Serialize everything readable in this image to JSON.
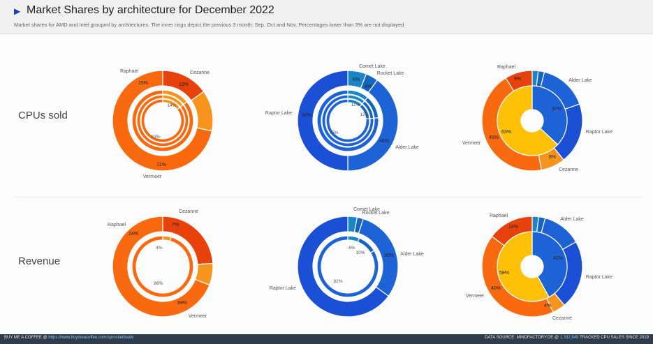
{
  "header": {
    "title": "Market Shares by architecture for December 2022",
    "subtitle": "Market shares for AMD and Intel grouped by architectures. The inner rings depict the previous 3 month: Sep, Oct and Nov. Percentages lower than 3% are not displayed"
  },
  "rows": [
    {
      "label": "CPUs sold"
    },
    {
      "label": "Revenue"
    }
  ],
  "footer": {
    "left_prefix": "BUY ME A COFFEE @",
    "left_link": "https://www.buymeacoffee.com/sprocketblade",
    "right_prefix": "DATA SOURCE: MINDFACTORY.DE @",
    "right_count": "1,332,945",
    "right_suffix": "TRACKED CPU SALES SINCE 2019"
  },
  "colors": {
    "Raphael": "#e8420c",
    "Cezanne": "#f7941d",
    "Vermeer": "#f96a10",
    "Comet Lake": "#1a86c8",
    "Rocket Lake": "#1565c0",
    "Alder Lake": "#1e63d6",
    "Raptor Lake": "#1a4fd6",
    "Cezanne-combined": "#ffc107",
    "Alder Lake-combined": "#26c6a0"
  },
  "chart_data": [
    {
      "type": "donut",
      "row": "CPUs sold",
      "vendor": "AMD",
      "series": [
        {
          "name": "Raphael",
          "values": [
            15,
            0,
            0,
            0
          ]
        },
        {
          "name": "Cezanne",
          "values": [
            13,
            14,
            14,
            14
          ]
        },
        {
          "name": "Vermeer",
          "values": [
            71,
            83,
            83,
            83
          ]
        }
      ],
      "labels_printed": {
        "Raphael": "15%",
        "Cezanne": "13%",
        "Vermeer": "71%",
        "inner_Cezanne": "14%",
        "inner_Vermeer": "83%"
      }
    },
    {
      "type": "donut",
      "row": "CPUs sold",
      "vendor": "Intel",
      "series": [
        {
          "name": "Comet Lake",
          "values": [
            6,
            11,
            11,
            11
          ]
        },
        {
          "name": "Rocket Lake",
          "values": [
            4,
            12,
            12,
            12
          ]
        },
        {
          "name": "Alder Lake",
          "values": [
            40,
            75,
            75,
            75
          ]
        },
        {
          "name": "Raptor Lake",
          "values": [
            50,
            0,
            0,
            0
          ]
        }
      ],
      "labels_printed": {
        "Comet Lake": "6%",
        "Rocket Lake": "4%",
        "Alder Lake": "40%",
        "Raptor Lake": "50%",
        "inner_Comet": "11%",
        "inner_Rocket": "12%",
        "inner_Alder": "75%"
      }
    },
    {
      "type": "donut",
      "row": "CPUs sold",
      "vendor": "Combined",
      "series": [
        {
          "name": "Comet Lake",
          "values": [
            2,
            0
          ]
        },
        {
          "name": "Rocket Lake",
          "values": [
            2,
            0
          ]
        },
        {
          "name": "Alder Lake",
          "values": [
            16,
            37
          ]
        },
        {
          "name": "Raptor Lake",
          "values": [
            20,
            0
          ]
        },
        {
          "name": "Cezanne",
          "values": [
            8,
            0
          ]
        },
        {
          "name": "Vermeer",
          "values": [
            45,
            0
          ]
        },
        {
          "name": "Raphael",
          "values": [
            9,
            0
          ]
        },
        {
          "name": "Cezanne-combined",
          "values": [
            0,
            63
          ]
        }
      ],
      "labels_printed": {
        "Raphael": "9%",
        "Vermeer": "45%",
        "Cezanne": "8%",
        "Alder Lake": "37%",
        "Vermeer-combined": "63%"
      }
    },
    {
      "type": "donut",
      "row": "Revenue",
      "vendor": "AMD",
      "series": [
        {
          "name": "Raphael",
          "values": [
            24,
            0
          ]
        },
        {
          "name": "Cezanne",
          "values": [
            7,
            4
          ]
        },
        {
          "name": "Vermeer",
          "values": [
            69,
            86
          ]
        }
      ],
      "labels_printed": {
        "Raphael": "24%",
        "Cezanne": "7%",
        "Vermeer": "69%",
        "inner_Cezanne": "4%",
        "inner_Vermeer": "86%"
      }
    },
    {
      "type": "donut",
      "row": "Revenue",
      "vendor": "Intel",
      "series": [
        {
          "name": "Comet Lake",
          "values": [
            3,
            6
          ]
        },
        {
          "name": "Rocket Lake",
          "values": [
            2,
            10
          ]
        },
        {
          "name": "Alder Lake",
          "values": [
            30,
            82
          ]
        },
        {
          "name": "Raptor Lake",
          "values": [
            65,
            0
          ]
        }
      ],
      "labels_printed": {
        "Alder Lake": "30%",
        "inner_Comet": "6%",
        "inner_Rocket": "10%",
        "inner_Alder": "82%"
      }
    },
    {
      "type": "donut",
      "row": "Revenue",
      "vendor": "Combined",
      "series": [
        {
          "name": "Comet Lake",
          "values": [
            2,
            0
          ]
        },
        {
          "name": "Rocket Lake",
          "values": [
            2,
            0
          ]
        },
        {
          "name": "Alder Lake",
          "values": [
            12,
            42
          ]
        },
        {
          "name": "Raptor Lake",
          "values": [
            21,
            0
          ]
        },
        {
          "name": "Cezanne",
          "values": [
            4,
            0
          ]
        },
        {
          "name": "Vermeer",
          "values": [
            40,
            0
          ]
        },
        {
          "name": "Raphael",
          "values": [
            14,
            0
          ]
        },
        {
          "name": "Cezanne-combined",
          "values": [
            0,
            58
          ]
        }
      ],
      "labels_printed": {
        "Raphael": "14%",
        "Vermeer": "40%",
        "Cezanne": "4%",
        "Alder Lake": "42%",
        "Vermeer-combined": "58%"
      }
    }
  ]
}
